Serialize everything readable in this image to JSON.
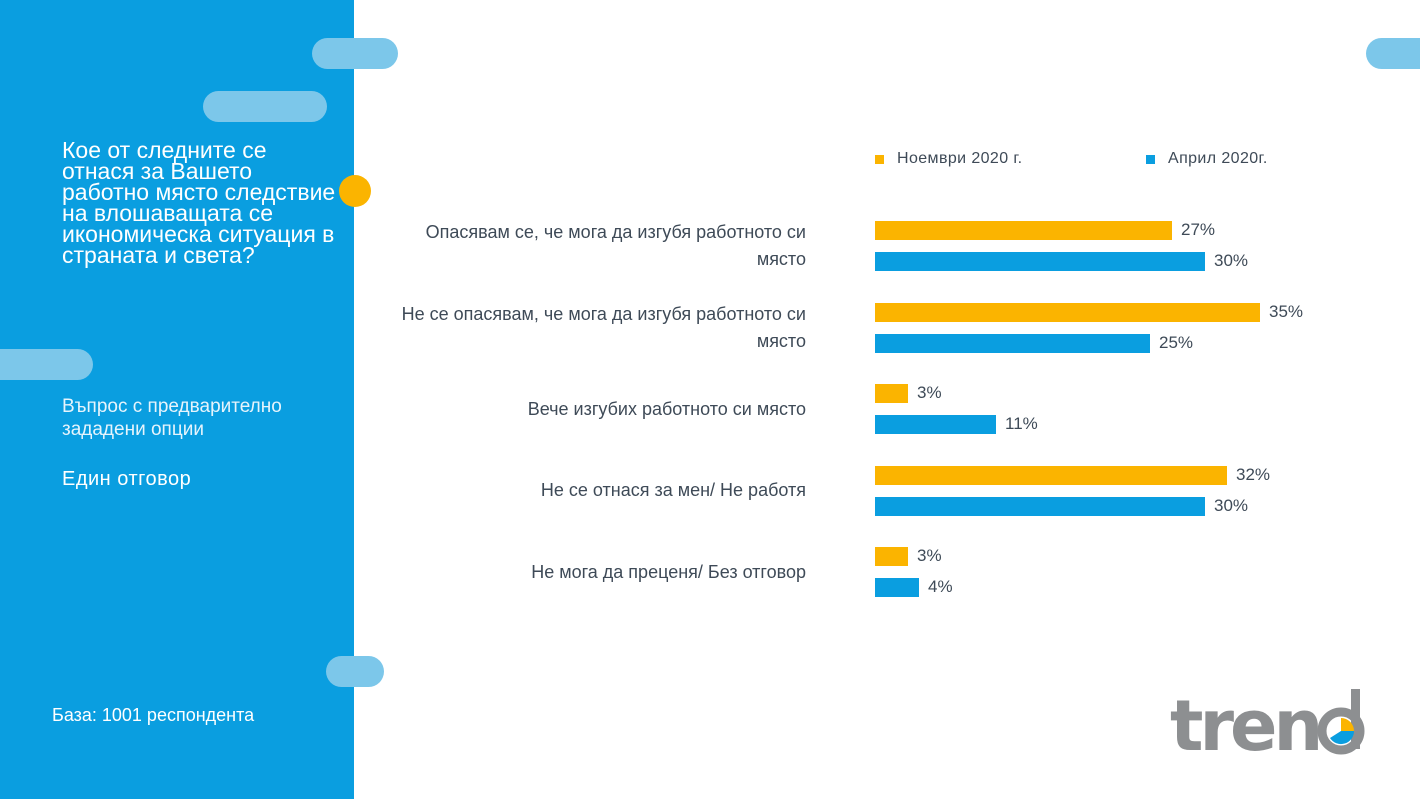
{
  "sidebar": {
    "question": "Кое от следните се отнася за Вашето работно място следствие на влошаващата се икономическа ситуация в страната и света?",
    "question_type": "Въпрос с предварително зададени опции",
    "answer_type": "Един отговор",
    "base": "База: 1001 респондента"
  },
  "logo": {
    "text": "trend"
  },
  "colors": {
    "sidebar": "#0a9ee0",
    "accent_pill": "#7cc7ea",
    "november": "#fbb400",
    "april": "#0a9ee0",
    "text": "#3e4a57"
  },
  "chart_data": {
    "type": "bar",
    "orientation": "horizontal",
    "categories": [
      "Опасявам се, че мога да изгубя работното си място",
      "Не се опасявам, че мога да изгубя работното си място",
      "Вече изгубих работното си място",
      "Не се отнася за мен/ Не работя",
      "Не мога да преценя/ Без отговор"
    ],
    "series": [
      {
        "name": "Ноември 2020 г.",
        "color": "#fbb400",
        "values": [
          27,
          35,
          3,
          32,
          3
        ]
      },
      {
        "name": "Април 2020г.",
        "color": "#0a9ee0",
        "values": [
          30,
          25,
          11,
          30,
          4
        ]
      }
    ],
    "value_suffix": "%",
    "legend": "top",
    "grid": false
  }
}
